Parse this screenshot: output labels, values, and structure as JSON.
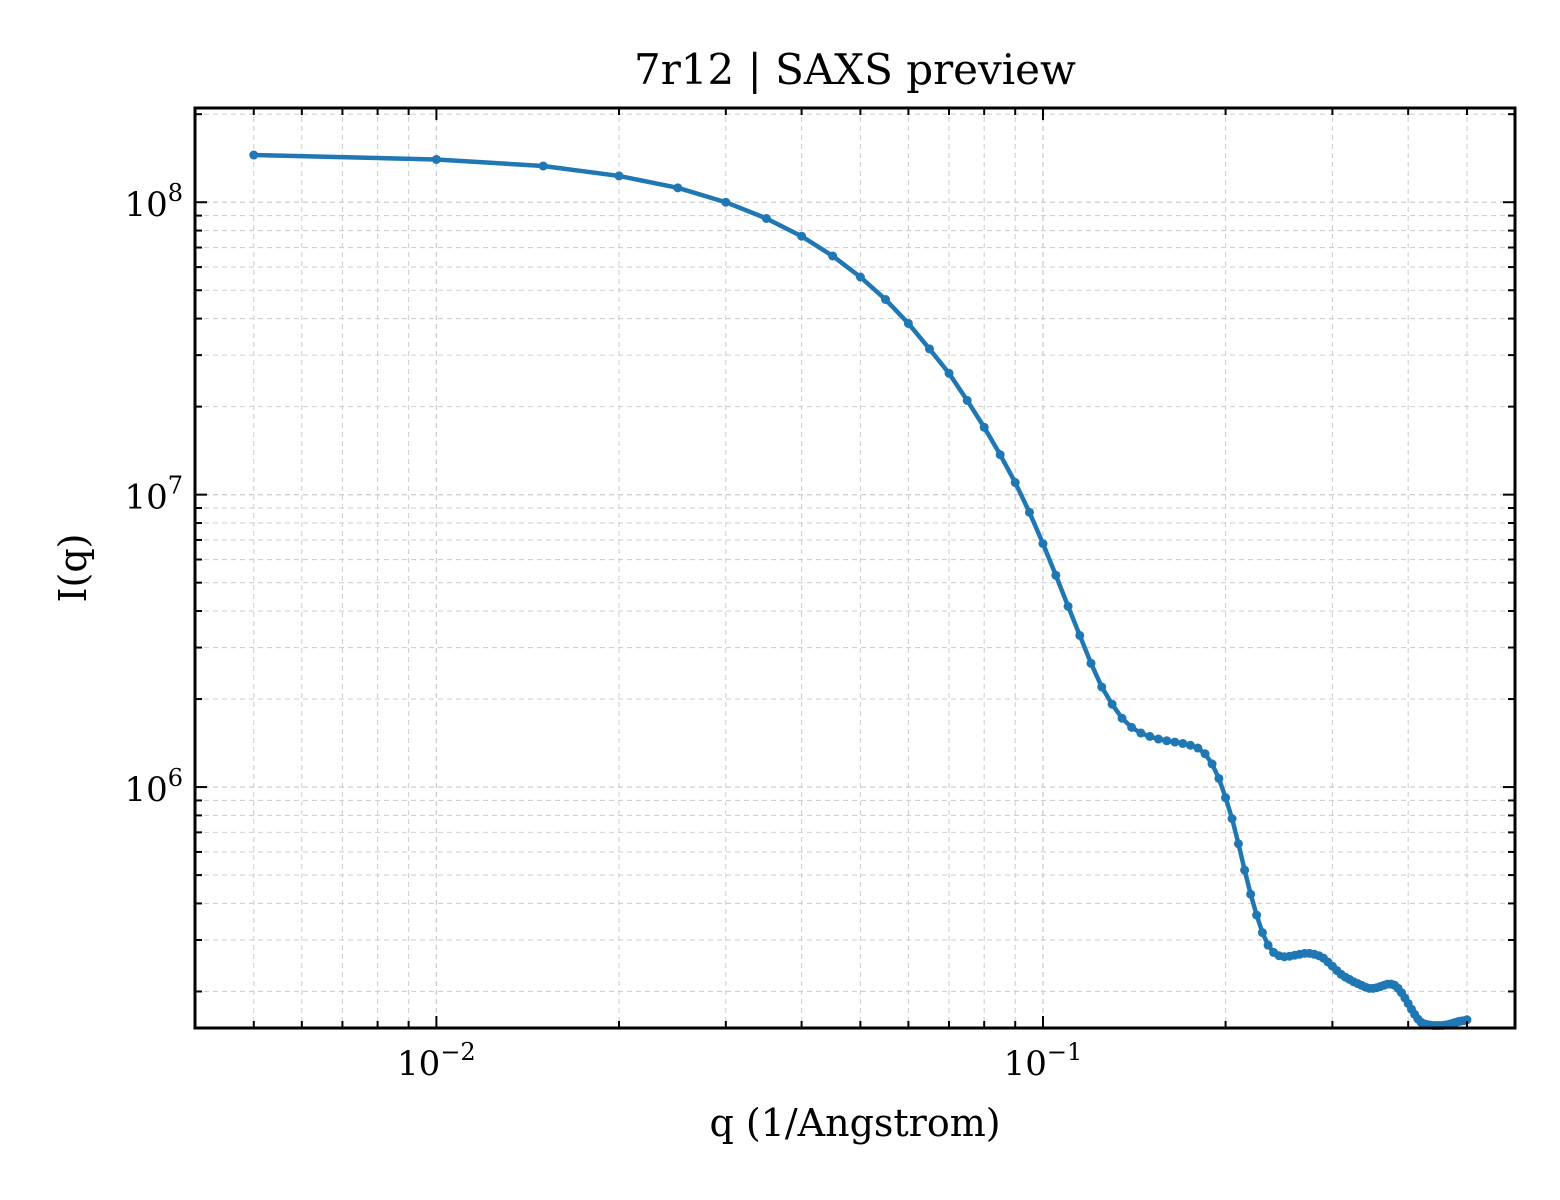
{
  "chart_data": {
    "type": "line",
    "title": "7r12 | SAXS preview",
    "xlabel": "q (1/Angstrom)",
    "ylabel": "I(q)",
    "xscale": "log",
    "yscale": "log",
    "xlim": [
      0.004,
      0.6
    ],
    "ylim": [
      150000,
      210000000
    ],
    "grid": true,
    "legend": "none",
    "series_color": "#1f77b4",
    "x_ticks": [
      {
        "value": 0.01,
        "base": "10",
        "exp": "−2"
      },
      {
        "value": 0.1,
        "base": "10",
        "exp": "−1"
      }
    ],
    "y_ticks": [
      {
        "value": 1000000,
        "base": "10",
        "exp": "6"
      },
      {
        "value": 10000000,
        "base": "10",
        "exp": "7"
      },
      {
        "value": 100000000,
        "base": "10",
        "exp": "8"
      }
    ],
    "series": [
      {
        "x": [
          0.005,
          0.01,
          0.015,
          0.02,
          0.025,
          0.03,
          0.035,
          0.04,
          0.045,
          0.05,
          0.055,
          0.06,
          0.065,
          0.07,
          0.075,
          0.08,
          0.085,
          0.09,
          0.095,
          0.1,
          0.105,
          0.11,
          0.115,
          0.12,
          0.125,
          0.13,
          0.135,
          0.14,
          0.145,
          0.15,
          0.155,
          0.16,
          0.165,
          0.17,
          0.175,
          0.18,
          0.185,
          0.19,
          0.195,
          0.2,
          0.205,
          0.21,
          0.215,
          0.22,
          0.225,
          0.23,
          0.235,
          0.24,
          0.245,
          0.25,
          0.255,
          0.26,
          0.265,
          0.27,
          0.275,
          0.28,
          0.285,
          0.29,
          0.295,
          0.3,
          0.305,
          0.31,
          0.315,
          0.32,
          0.325,
          0.33,
          0.335,
          0.34,
          0.345,
          0.35,
          0.355,
          0.36,
          0.365,
          0.37,
          0.375,
          0.38,
          0.385,
          0.39,
          0.395,
          0.4,
          0.405,
          0.41,
          0.415,
          0.42,
          0.425,
          0.43,
          0.435,
          0.44,
          0.445,
          0.45,
          0.455,
          0.46,
          0.465,
          0.47,
          0.475,
          0.48,
          0.485,
          0.49,
          0.495,
          0.5
        ],
        "y": [
          145000000,
          140000000,
          133000000,
          123000000,
          112000000,
          100000000,
          88000000,
          76500000,
          65500000,
          55500000,
          46500000,
          38500000,
          31500000,
          26000000,
          21000000,
          17000000,
          13700000,
          11000000,
          8700000,
          6800000,
          5300000,
          4150000,
          3300000,
          2650000,
          2200000,
          1920000,
          1720000,
          1600000,
          1530000,
          1490000,
          1460000,
          1440000,
          1425000,
          1410000,
          1390000,
          1360000,
          1300000,
          1200000,
          1070000,
          920000,
          780000,
          640000,
          520000,
          430000,
          365000,
          318000,
          288000,
          272000,
          265000,
          263000,
          264000,
          266000,
          268000,
          270000,
          270000,
          268000,
          265000,
          260000,
          252000,
          244000,
          236000,
          229000,
          224000,
          220000,
          216000,
          213000,
          210000,
          207000,
          205000,
          205000,
          206000,
          208000,
          210000,
          212000,
          212000,
          210000,
          205000,
          198000,
          190000,
          182000,
          174000,
          167000,
          161000,
          157000,
          155000,
          154000,
          153500,
          153000,
          153000,
          153000,
          153000,
          153500,
          154000,
          155000,
          156000,
          157000,
          158000,
          158500,
          159000,
          160000
        ]
      }
    ]
  }
}
